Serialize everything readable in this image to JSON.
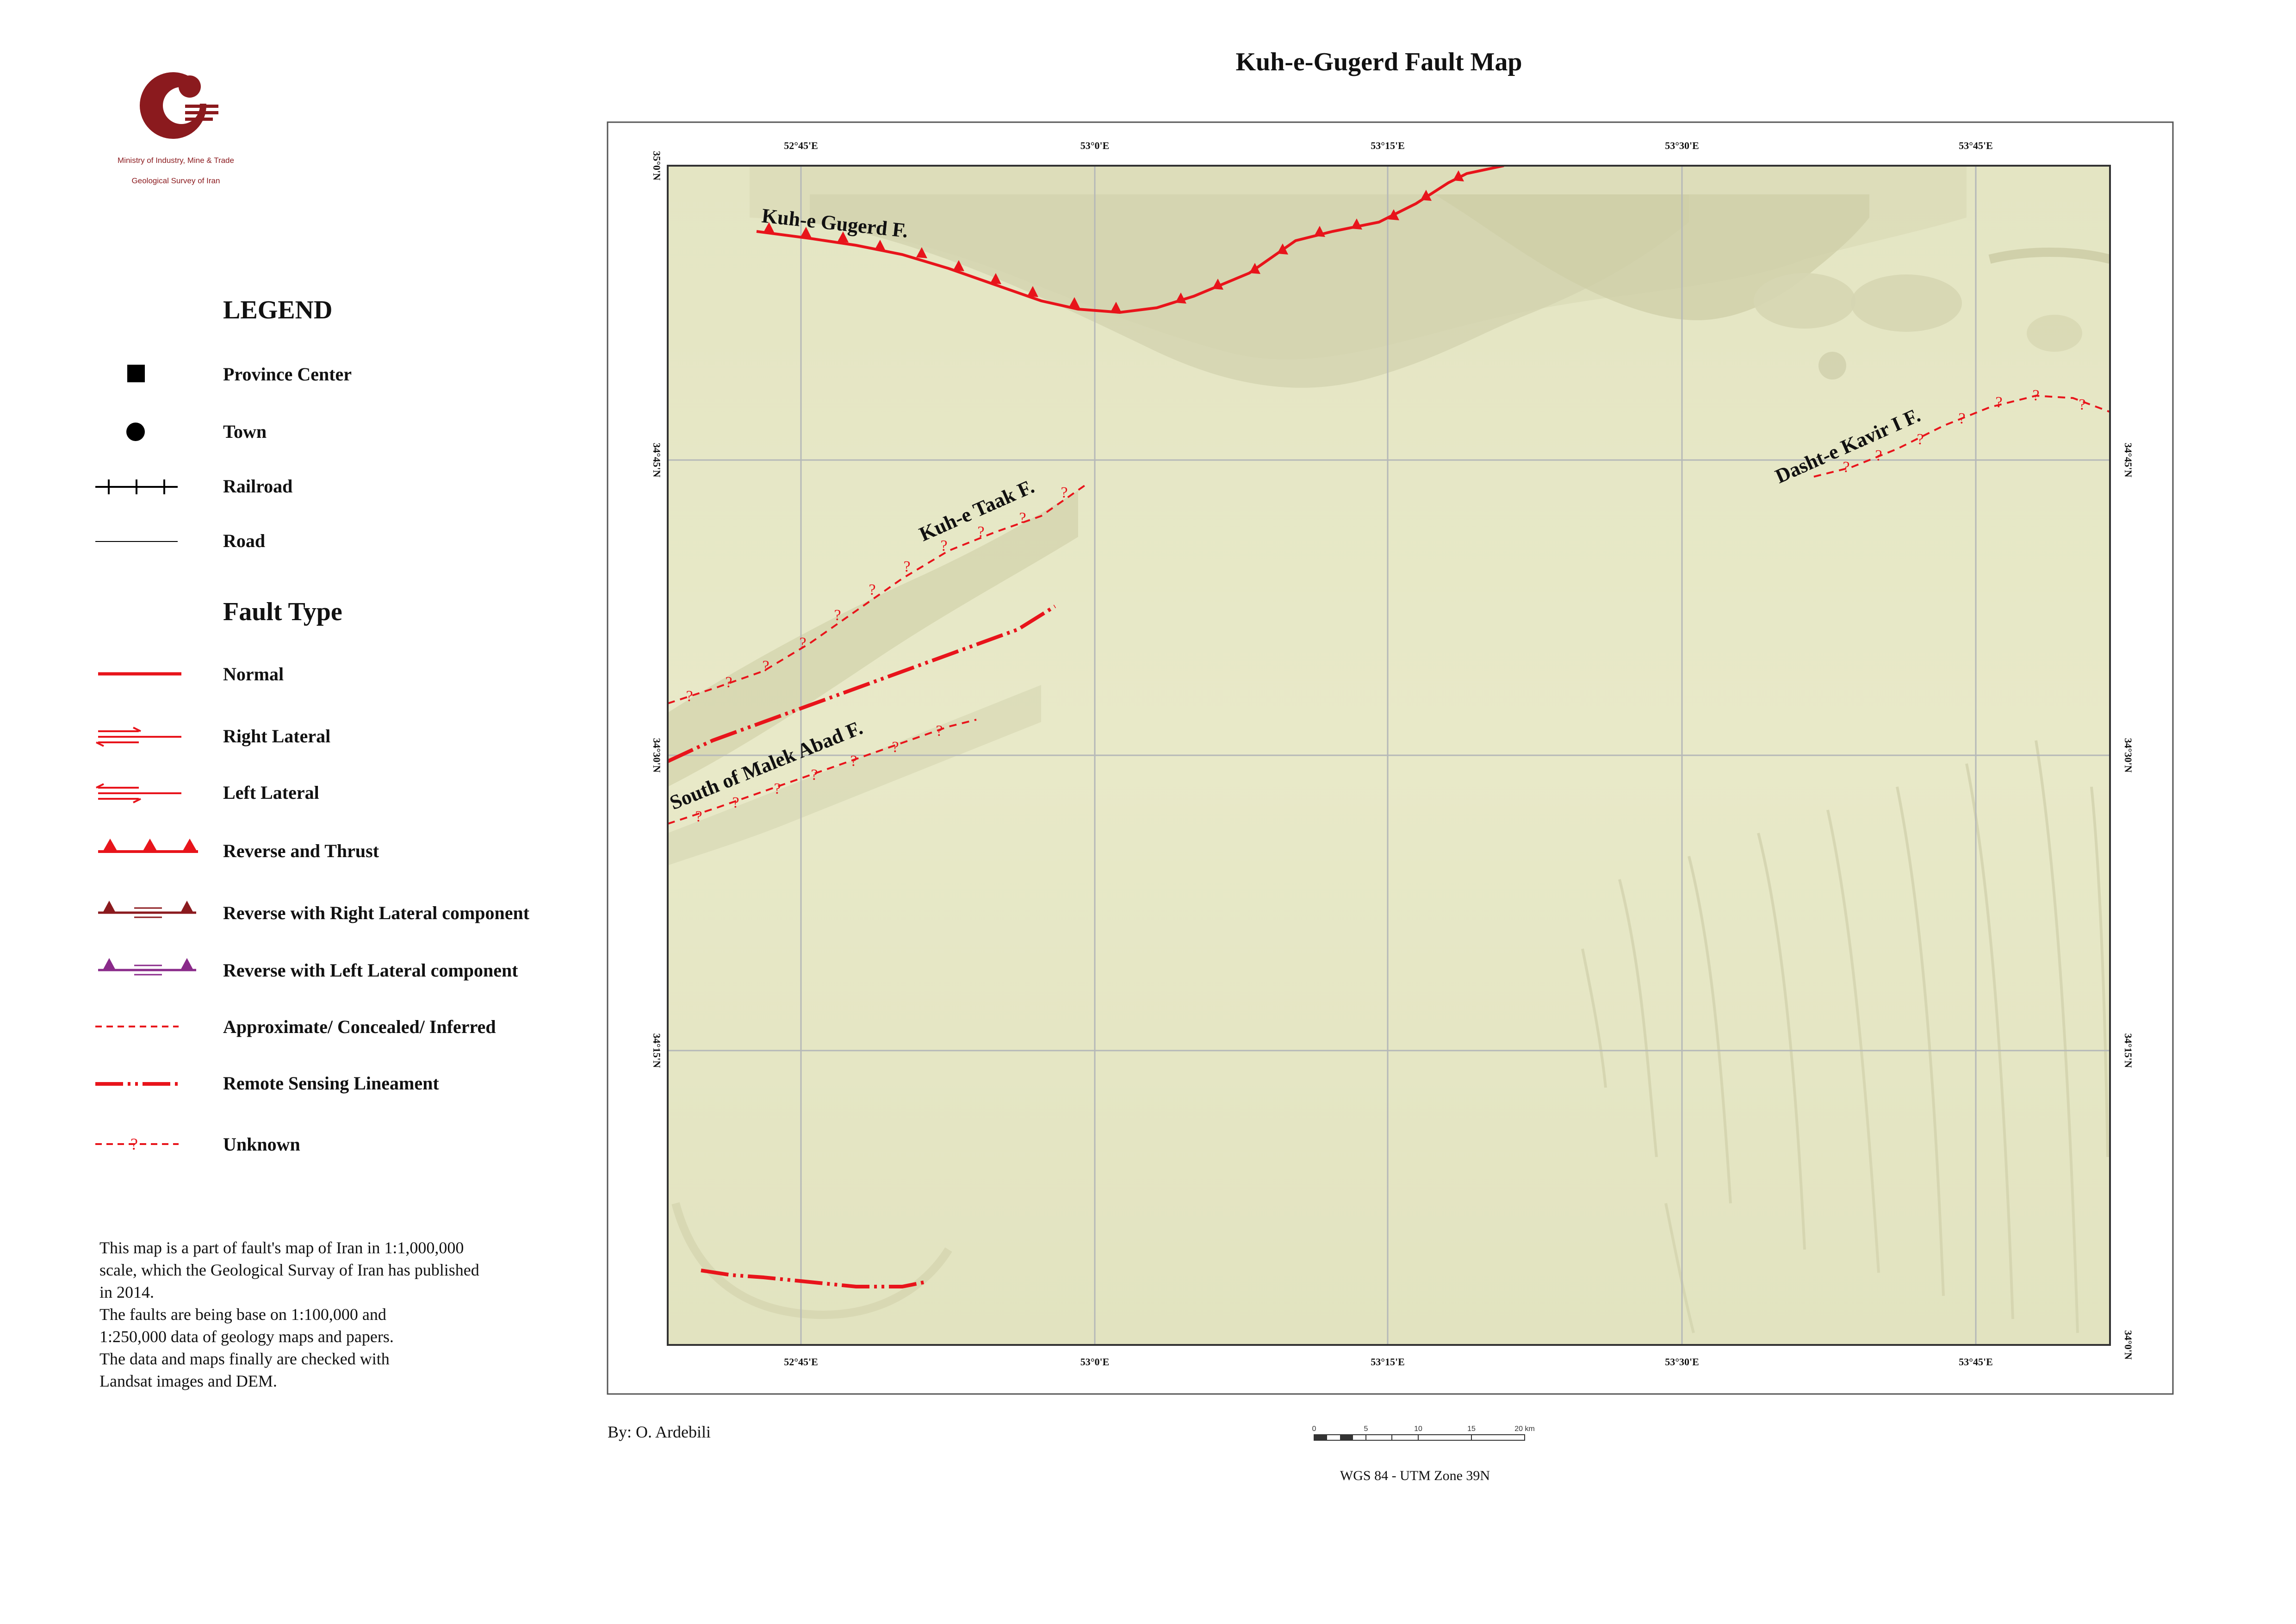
{
  "title": "Kuh-e-Gugerd Fault Map",
  "logo": {
    "org_line1": "Ministry of Industry, Mine & Trade",
    "org_line2": "Geological Survey of Iran"
  },
  "legend": {
    "heading": "LEGEND",
    "items": [
      {
        "label": "Province Center",
        "symbol": "square"
      },
      {
        "label": "Town",
        "symbol": "circle"
      },
      {
        "label": "Railroad",
        "symbol": "railroad"
      },
      {
        "label": "Road",
        "symbol": "road"
      }
    ],
    "fault_heading": "Fault Type",
    "fault_items": [
      {
        "label": "Normal",
        "symbol": "normal"
      },
      {
        "label": "Right Lateral",
        "symbol": "right-lateral"
      },
      {
        "label": "Left Lateral",
        "symbol": "left-lateral"
      },
      {
        "label": "Reverse and Thrust",
        "symbol": "thrust"
      },
      {
        "label": "Reverse with Right Lateral component",
        "symbol": "reverse-right"
      },
      {
        "label": "Reverse with Left Lateral component",
        "symbol": "reverse-left"
      },
      {
        "label": "Approximate/ Concealed/ Inferred",
        "symbol": "approximate"
      },
      {
        "label": "Remote Sensing Lineament",
        "symbol": "lineament"
      },
      {
        "label": "Unknown",
        "symbol": "unknown"
      }
    ]
  },
  "note": [
    "This map is a part of fault's map of Iran in 1:1,000,000",
    "scale, which the Geological Survay of Iran has published",
    "in 2014.",
    "The faults are being base on 1:100,000 and",
    "1:250,000 data of geology maps and papers.",
    "The data and maps finally are checked with",
    "Landsat images and DEM."
  ],
  "map": {
    "longitude_labels": [
      "52°45'E",
      "53°0'E",
      "53°15'E",
      "53°30'E",
      "53°45'E"
    ],
    "latitude_labels": [
      "35°0'N",
      "34°45'N",
      "34°30'N",
      "34°15'N",
      "34°0'N"
    ],
    "fault_names": [
      "Kuh-e Gugerd F.",
      "Kuh-e Taak F.",
      "South of Malek Abad F.",
      "Dasht-e Kavir I F."
    ],
    "colors": {
      "fault": "#e8141b",
      "terrain": "#e7e8c6",
      "grid": "#b5b8b8"
    }
  },
  "credit": "By: O. Ardebili",
  "scale_bar": {
    "labels": [
      "0",
      "5",
      "10",
      "15",
      "20 km"
    ]
  },
  "projection": "WGS 84 - UTM Zone 39N"
}
